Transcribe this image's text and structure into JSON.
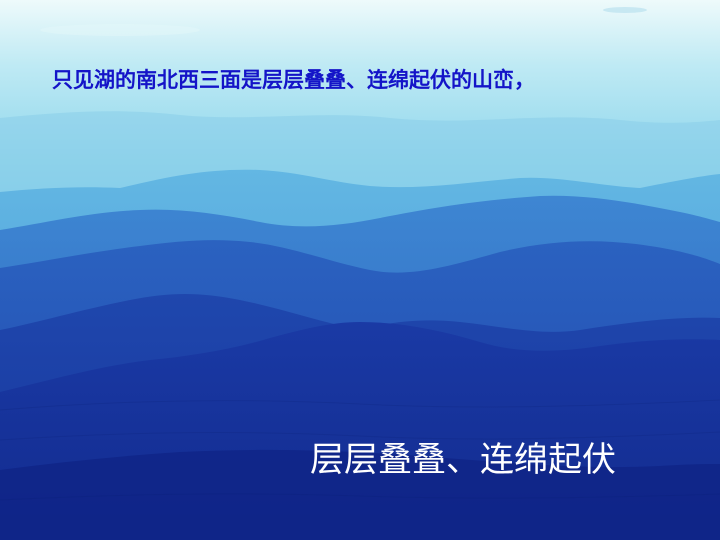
{
  "slide": {
    "top_caption": "只见湖的南北西三面是层层叠叠、连绵起伏的山峦，",
    "bottom_caption": "层层叠叠、连绵起伏"
  },
  "colors": {
    "sky_top": "#d8f3f7",
    "sky_mid": "#8fd8ec",
    "ridge_far": "#4aa7da",
    "ridge_mid": "#2d74c8",
    "ridge_near": "#1f4fb0",
    "ridge_front": "#1a35a0",
    "top_caption_color": "#1414c8",
    "bottom_caption_color": "#ffffff"
  }
}
